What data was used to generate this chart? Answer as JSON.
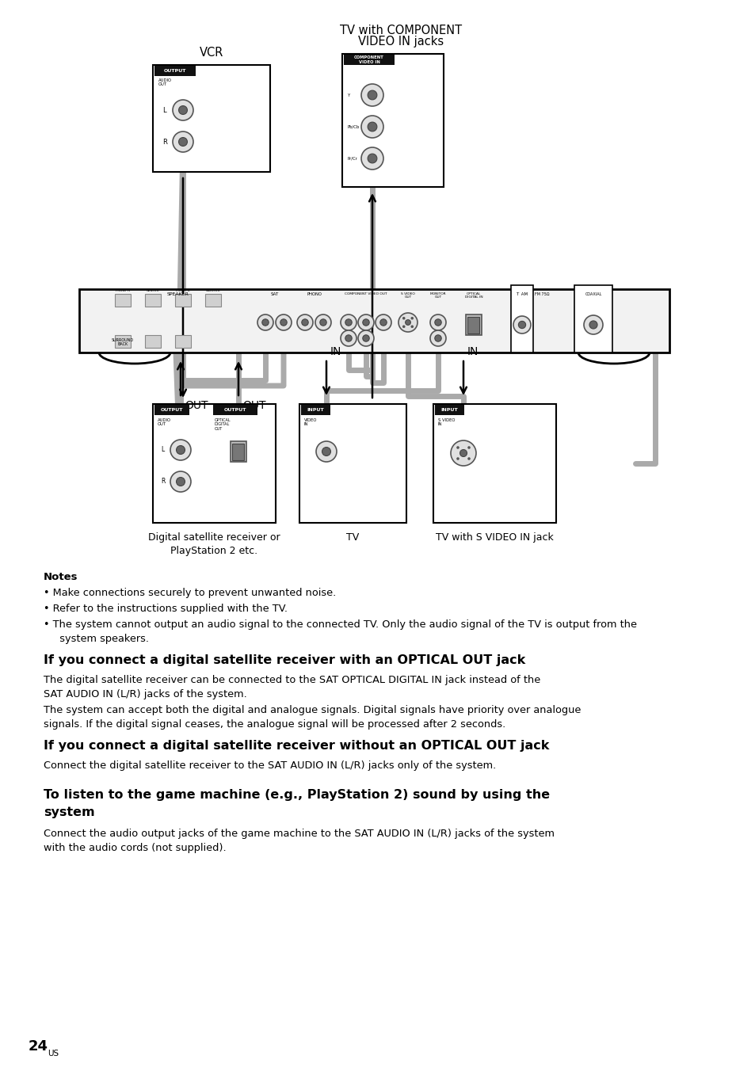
{
  "page_bg": "#ffffff",
  "title_vcr": "VCR",
  "title_tv_comp1": "TV with COMPONENT",
  "title_tv_comp2": "VIDEO IN jacks",
  "dev_label1": "Digital satellite receiver or\nPlayStation 2 etc.",
  "dev_label2": "TV",
  "dev_label3": "TV with S VIDEO IN jack",
  "notes_title": "Notes",
  "note1": "• Make connections securely to prevent unwanted noise.",
  "note2": "• Refer to the instructions supplied with the TV.",
  "note3": "• The system cannot output an audio signal to the connected TV. Only the audio signal of the TV is output from the",
  "note3b": "  system speakers.",
  "section1_title": "If you connect a digital satellite receiver with an OPTICAL OUT jack",
  "section1_body1": "The digital satellite receiver can be connected to the SAT OPTICAL DIGITAL IN jack instead of the",
  "section1_body1b": "SAT AUDIO IN (L/R) jacks of the system.",
  "section1_body2": "The system can accept both the digital and analogue signals. Digital signals have priority over analogue",
  "section1_body2b": "signals. If the digital signal ceases, the analogue signal will be processed after 2 seconds.",
  "section2_title": "If you connect a digital satellite receiver without an OPTICAL OUT jack",
  "section2_body": "Connect the digital satellite receiver to the SAT AUDIO IN (L/R) jacks only of the system.",
  "section3_title1": "To listen to the game machine (e.g., PlayStation 2) sound by using the",
  "section3_title2": "system",
  "section3_body1": "Connect the audio output jacks of the game machine to the SAT AUDIO IN (L/R) jacks of the system",
  "section3_body2": "with the audio cords (not supplied).",
  "page_num": "24",
  "page_num_sup": "US",
  "cable_color": "#aaaaaa",
  "box_edge_color": "#000000",
  "text_color": "#000000"
}
